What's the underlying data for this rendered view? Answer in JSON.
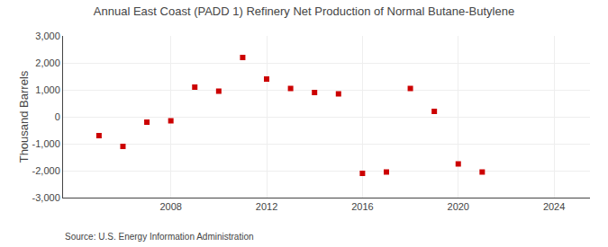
{
  "chart_data": {
    "type": "scatter",
    "title": "Annual East Coast (PADD 1) Refinery Net Production of Normal Butane-Butylene",
    "ylabel": "Thousand Barrels",
    "annotations": [
      "Source: U.S. Energy Information Administration"
    ],
    "x": [
      2005,
      2006,
      2007,
      2008,
      2009,
      2010,
      2011,
      2012,
      2013,
      2014,
      2015,
      2016,
      2017,
      2018,
      2019,
      2020,
      2021
    ],
    "values": [
      -700,
      -1100,
      -200,
      -150,
      1100,
      950,
      2200,
      1400,
      1050,
      900,
      850,
      -2100,
      -2050,
      1050,
      200,
      -1750,
      -2050
    ],
    "color": "#cc0000",
    "marker": "square",
    "xlim": [
      2003.5,
      2025.5
    ],
    "xticks": [
      2008,
      2012,
      2016,
      2020,
      2024
    ],
    "ylim": [
      -3000,
      3000
    ],
    "yticks": [
      {
        "value": -3000,
        "label": "-3,000"
      },
      {
        "value": -2000,
        "label": "-2,000"
      },
      {
        "value": -1000,
        "label": "-1,000"
      },
      0,
      {
        "value": 1000,
        "label": "1,000"
      },
      {
        "value": 2000,
        "label": "2,000"
      },
      {
        "value": 3000,
        "label": "3,000"
      }
    ],
    "grid": true
  }
}
